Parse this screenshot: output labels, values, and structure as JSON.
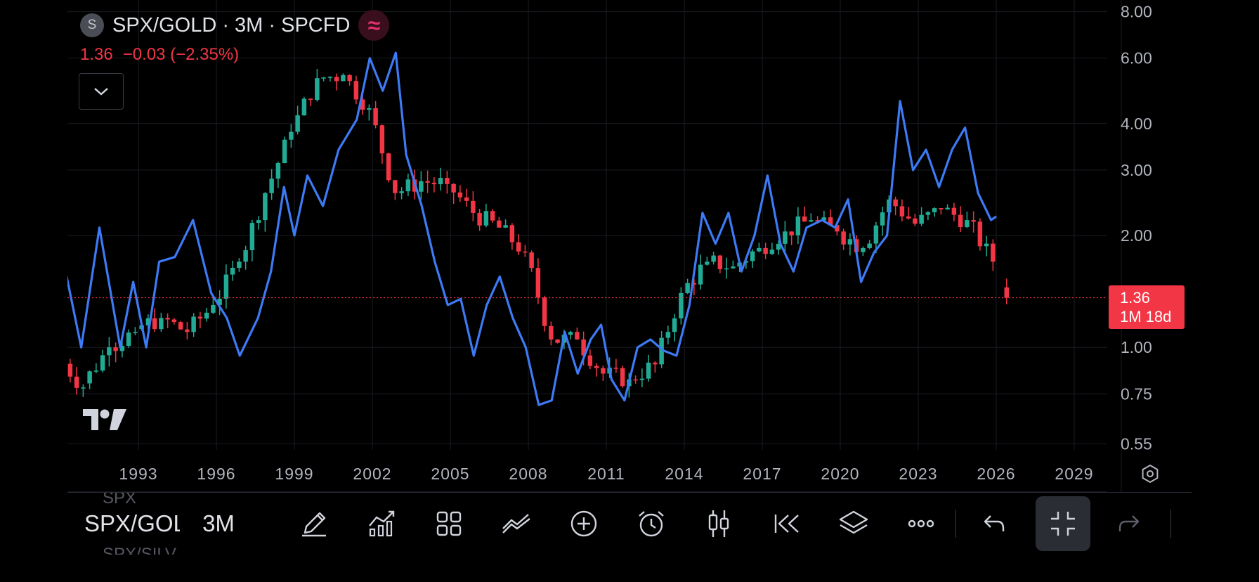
{
  "legend": {
    "symbol_badge": "S",
    "title": "SPX/GOLD · 3M · SPCFD",
    "overlay_icon": "≈",
    "last": "1.36",
    "change": "−0.03",
    "change_pct": "(−2.35%)"
  },
  "price_tag": {
    "price": "1.36",
    "countdown": "1M 18d"
  },
  "y_axis": {
    "ticks": [
      "8.00",
      "6.00",
      "4.00",
      "3.00",
      "2.00",
      "1.00",
      "0.75",
      "0.55"
    ],
    "scale": "log"
  },
  "x_axis": {
    "ticks": [
      "1993",
      "1996",
      "1999",
      "2002",
      "2005",
      "2008",
      "2011",
      "2014",
      "2017",
      "2020",
      "2023",
      "2026",
      "2029"
    ]
  },
  "toolbar": {
    "symbol": "SPX/GOLD",
    "symbol_prev": "SPX",
    "symbol_next": "SPX/SILV",
    "interval": "3M",
    "icons": [
      "pencil-icon",
      "indicators-icon",
      "layouts-icon",
      "compare-icon",
      "add-icon",
      "alert-icon",
      "candles-icon",
      "replay-icon",
      "layers-icon",
      "more-icon",
      "undo-icon",
      "fullscreen-exit-icon",
      "redo-icon"
    ]
  },
  "colors": {
    "up": "#22ab94",
    "down": "#f23645",
    "overlay_line": "#3d7af5",
    "background": "#000000"
  },
  "chart_data": {
    "type": "candlestick",
    "title": "SPX/GOLD · 3M · SPCFD",
    "scale": "log",
    "ylim": [
      0.5,
      8.5
    ],
    "xlim": [
      1990.2,
      2030.5
    ],
    "candles": [
      {
        "t": 1990.5,
        "o": 0.95,
        "c": 0.78
      },
      {
        "t": 1991.5,
        "o": 0.8,
        "c": 1.0
      },
      {
        "t": 1992.5,
        "o": 1.0,
        "c": 1.1
      },
      {
        "t": 1993.5,
        "o": 1.12,
        "c": 1.2
      },
      {
        "t": 1994.5,
        "o": 1.2,
        "c": 1.1
      },
      {
        "t": 1995.5,
        "o": 1.1,
        "c": 1.3
      },
      {
        "t": 1996.5,
        "o": 1.3,
        "c": 1.7
      },
      {
        "t": 1997.5,
        "o": 1.7,
        "c": 2.6
      },
      {
        "t": 1998.5,
        "o": 2.6,
        "c": 3.8
      },
      {
        "t": 1999.5,
        "o": 3.8,
        "c": 5.3
      },
      {
        "t": 2000.5,
        "o": 5.3,
        "c": 5.4
      },
      {
        "t": 2001.5,
        "o": 5.4,
        "c": 4.4
      },
      {
        "t": 2002.5,
        "o": 4.4,
        "c": 2.6
      },
      {
        "t": 2003.5,
        "o": 2.6,
        "c": 2.8
      },
      {
        "t": 2004.5,
        "o": 2.8,
        "c": 2.75
      },
      {
        "t": 2005.5,
        "o": 2.75,
        "c": 2.3
      },
      {
        "t": 2006.5,
        "o": 2.3,
        "c": 2.1
      },
      {
        "t": 2007.5,
        "o": 2.1,
        "c": 1.8
      },
      {
        "t": 2008.5,
        "o": 1.8,
        "c": 1.05
      },
      {
        "t": 2009.5,
        "o": 1.05,
        "c": 1.05
      },
      {
        "t": 2010.5,
        "o": 1.05,
        "c": 0.85
      },
      {
        "t": 2011.5,
        "o": 0.85,
        "c": 0.82
      },
      {
        "t": 2012.5,
        "o": 0.82,
        "c": 0.9
      },
      {
        "t": 2013.5,
        "o": 0.9,
        "c": 1.4
      },
      {
        "t": 2014.5,
        "o": 1.4,
        "c": 1.7
      },
      {
        "t": 2015.5,
        "o": 1.7,
        "c": 1.65
      },
      {
        "t": 2016.5,
        "o": 1.65,
        "c": 1.85
      },
      {
        "t": 2017.5,
        "o": 1.85,
        "c": 2.05
      },
      {
        "t": 2018.5,
        "o": 2.05,
        "c": 2.2
      },
      {
        "t": 2019.5,
        "o": 2.2,
        "c": 2.05
      },
      {
        "t": 2020.5,
        "o": 2.05,
        "c": 1.85
      },
      {
        "t": 2021.5,
        "o": 1.85,
        "c": 2.5
      },
      {
        "t": 2022.5,
        "o": 2.5,
        "c": 2.15
      },
      {
        "t": 2023.5,
        "o": 2.15,
        "c": 2.35
      },
      {
        "t": 2024.5,
        "o": 2.35,
        "c": 2.2
      },
      {
        "t": 2025.5,
        "o": 2.2,
        "c": 1.7
      },
      {
        "t": 2026.0,
        "o": 1.45,
        "c": 1.36
      }
    ],
    "overlay_series": {
      "color": "#3d7af5",
      "points": [
        [
          1990.2,
          1.6
        ],
        [
          1990.8,
          1.0
        ],
        [
          1991.5,
          2.1
        ],
        [
          1992.3,
          1.0
        ],
        [
          1992.8,
          1.5
        ],
        [
          1993.3,
          1.0
        ],
        [
          1993.8,
          1.7
        ],
        [
          1994.4,
          1.75
        ],
        [
          1995.1,
          2.2
        ],
        [
          1995.8,
          1.4
        ],
        [
          1996.4,
          1.2
        ],
        [
          1996.9,
          0.95
        ],
        [
          1997.6,
          1.2
        ],
        [
          1998.1,
          1.6
        ],
        [
          1998.6,
          2.7
        ],
        [
          1999.0,
          2.0
        ],
        [
          1999.5,
          2.9
        ],
        [
          2000.1,
          2.4
        ],
        [
          2000.7,
          3.4
        ],
        [
          2001.4,
          4.1
        ],
        [
          2001.9,
          6.0
        ],
        [
          2002.4,
          4.9
        ],
        [
          2002.9,
          6.2
        ],
        [
          2003.3,
          3.3
        ],
        [
          2003.9,
          2.4
        ],
        [
          2004.4,
          1.7
        ],
        [
          2004.9,
          1.3
        ],
        [
          2005.4,
          1.35
        ],
        [
          2005.9,
          0.95
        ],
        [
          2006.4,
          1.3
        ],
        [
          2006.9,
          1.55
        ],
        [
          2007.4,
          1.2
        ],
        [
          2007.9,
          1.0
        ],
        [
          2008.4,
          0.7
        ],
        [
          2008.9,
          0.72
        ],
        [
          2009.4,
          1.1
        ],
        [
          2009.9,
          0.85
        ],
        [
          2010.4,
          1.05
        ],
        [
          2010.8,
          1.15
        ],
        [
          2011.2,
          0.82
        ],
        [
          2011.7,
          0.72
        ],
        [
          2012.2,
          1.0
        ],
        [
          2012.7,
          1.05
        ],
        [
          2013.2,
          0.98
        ],
        [
          2013.7,
          0.95
        ],
        [
          2014.2,
          1.3
        ],
        [
          2014.7,
          2.3
        ],
        [
          2015.2,
          1.9
        ],
        [
          2015.7,
          2.3
        ],
        [
          2016.2,
          1.6
        ],
        [
          2016.7,
          2.0
        ],
        [
          2017.2,
          2.9
        ],
        [
          2017.7,
          1.9
        ],
        [
          2018.2,
          1.6
        ],
        [
          2018.7,
          2.1
        ],
        [
          2019.3,
          2.2
        ],
        [
          2019.8,
          2.1
        ],
        [
          2020.3,
          2.5
        ],
        [
          2020.8,
          1.5
        ],
        [
          2021.3,
          1.8
        ],
        [
          2021.8,
          2.0
        ],
        [
          2022.3,
          4.6
        ],
        [
          2022.8,
          3.0
        ],
        [
          2023.3,
          3.4
        ],
        [
          2023.8,
          2.7
        ],
        [
          2024.3,
          3.4
        ],
        [
          2024.8,
          3.9
        ],
        [
          2025.3,
          2.6
        ],
        [
          2025.8,
          2.2
        ],
        [
          2026.0,
          2.25
        ]
      ]
    },
    "last_price_line": 1.36
  }
}
